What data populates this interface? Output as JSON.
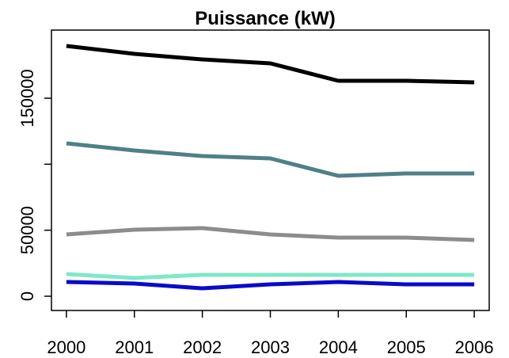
{
  "chart_data": {
    "type": "line",
    "title": "Puissance (kW)",
    "x": [
      2000,
      2001,
      2002,
      2003,
      2004,
      2005,
      2006
    ],
    "series": [
      {
        "color": "#000000",
        "values": [
          189600,
          183600,
          179400,
          176400,
          163200,
          163200,
          162000
        ]
      },
      {
        "color": "#4f8087",
        "values": [
          115800,
          110400,
          106200,
          104400,
          91200,
          93000,
          93000
        ]
      },
      {
        "color": "#8c8c8c",
        "values": [
          46800,
          50400,
          51600,
          46800,
          44400,
          44400,
          42600
        ]
      },
      {
        "color": "#7fe8c8",
        "values": [
          16800,
          13800,
          16200,
          16200,
          16200,
          16200,
          16200
        ]
      },
      {
        "color": "#0a0acc",
        "values": [
          10800,
          9600,
          6000,
          9000,
          10800,
          9000,
          9000
        ]
      }
    ],
    "xlim": [
      1999.78,
      2006.22
    ],
    "xticks": [
      2000,
      2001,
      2002,
      2003,
      2004,
      2005,
      2006
    ],
    "ylim": [
      -10800,
      201600
    ],
    "yticks": [
      0,
      50000,
      150000
    ],
    "ytick_marks": [
      0,
      50000,
      100000,
      150000
    ]
  }
}
